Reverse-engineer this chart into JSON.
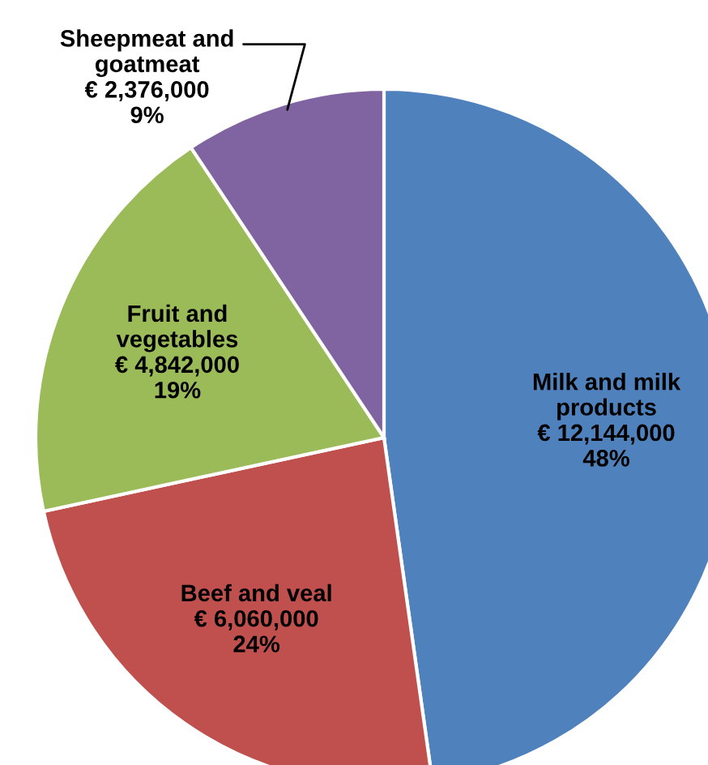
{
  "chart_data": {
    "type": "pie",
    "categories": [
      "Milk and milk\nproducts",
      "Beef and veal",
      "Fruit and\nvegetables",
      "Sheepmeat and\ngoatmeat"
    ],
    "values": [
      12144000,
      6060000,
      4842000,
      2376000
    ],
    "value_labels": [
      "€ 12,144,000\n48%",
      "€ 6,060,000\n24%",
      "€ 4,842,000\n19%",
      "€ 2,376,000\n9%"
    ],
    "colors": [
      "#4f81bd",
      "#c0504d",
      "#9bbb59",
      "#8064a2"
    ]
  }
}
